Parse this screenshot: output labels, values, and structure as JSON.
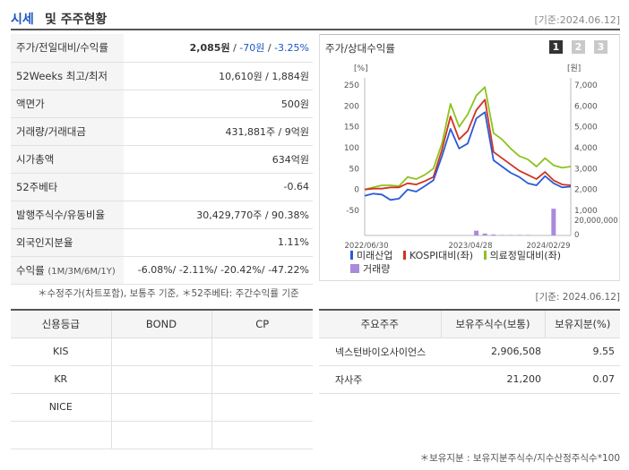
{
  "header": {
    "title_main": "시세",
    "title_rest": "및 주주현황",
    "date": "[기준:2024.06.12]"
  },
  "quote": {
    "price_label": "주가/전일대비/수익률",
    "price": "2,085원",
    "price_sep1": " / ",
    "change": "-70원",
    "price_sep2": " / ",
    "change_rate": "-3.25%",
    "w52_label": "52Weeks 최고/최저",
    "w52_value": "10,610원 / 1,884원",
    "par_label": "액면가",
    "par_value": "500원",
    "volume_label": "거래량/거래대금",
    "volume_value": "431,881주 / 9억원",
    "mcap_label": "시가총액",
    "mcap_value": "634억원",
    "beta_label": "52주베타",
    "beta_value": "-0.64",
    "shares_label": "발행주식수/유동비율",
    "shares_value": "30,429,770주 / 90.38%",
    "foreign_label": "외국인지분율",
    "foreign_value": "1.11%",
    "return_label": "수익률",
    "return_sub": "(1M/3M/6M/1Y)",
    "return_value": "-6.08%/ -2.11%/ -20.42%/ -47.22%"
  },
  "chart_panel": {
    "title": "주가/상대수익률",
    "tabs": [
      "1",
      "2",
      "3"
    ],
    "active_tab_color": "#333333",
    "inactive_tab_color": "#c9c9c9"
  },
  "chart_data": {
    "type": "line",
    "left_unit": "[%]",
    "right_unit": "[원]",
    "left_ticks": [
      "250",
      "200",
      "150",
      "100",
      "50",
      "0",
      "-50"
    ],
    "right_ticks": [
      "7,000",
      "6,000",
      "5,000",
      "4,000",
      "3,000",
      "2,000",
      "1,000"
    ],
    "volume_ticks": [
      "20,000,000",
      "0"
    ],
    "x_ticks": [
      "2022/06/30",
      "2023/04/28",
      "2024/02/29"
    ],
    "ylim": [
      -50,
      250
    ],
    "x": [
      0,
      1,
      2,
      3,
      4,
      5,
      6,
      7,
      8,
      9,
      10,
      11,
      12,
      13,
      14,
      15,
      16,
      17,
      18,
      19,
      20,
      21,
      22,
      23,
      24
    ],
    "series": [
      {
        "name": "미래산업",
        "color": "#2a5bd7",
        "values": [
          -15,
          -10,
          -12,
          -25,
          -22,
          0,
          -5,
          8,
          22,
          80,
          145,
          98,
          110,
          170,
          185,
          70,
          55,
          40,
          30,
          15,
          10,
          32,
          15,
          5,
          7
        ]
      },
      {
        "name": "KOSPI대비(좌)",
        "color": "#d0341f",
        "values": [
          0,
          2,
          2,
          5,
          5,
          15,
          12,
          20,
          30,
          95,
          175,
          120,
          140,
          190,
          215,
          90,
          75,
          60,
          45,
          35,
          25,
          42,
          22,
          12,
          10
        ]
      },
      {
        "name": "의료정밀대비(좌)",
        "color": "#8dc21f",
        "values": [
          0,
          5,
          10,
          10,
          8,
          30,
          25,
          35,
          50,
          110,
          205,
          150,
          180,
          225,
          245,
          135,
          120,
          98,
          80,
          72,
          55,
          75,
          58,
          52,
          55
        ]
      }
    ],
    "volume": {
      "name": "거래량",
      "color": "#a98bdc",
      "values": [
        0,
        0,
        0,
        0,
        0,
        0,
        0,
        0,
        0,
        0,
        0,
        0,
        0,
        5,
        2,
        1,
        0.5,
        0.5,
        0.5,
        0.5,
        0,
        0,
        28,
        0,
        0
      ]
    }
  },
  "legend": {
    "s1": "미래산업",
    "s2": "KOSPI대비(좌)",
    "s3": "의료정밀대비(좌)",
    "vol": "거래량"
  },
  "notes": {
    "left": "＊수정주가(차트포함), 보통주 기준, ＊52주베타: 주간수익률 기준",
    "right": "[기준: 2024.06.12]",
    "bottom": "＊보유지분 : 보유지분주식수/지수산정주식수*100"
  },
  "credit": {
    "headers": [
      "신용등급",
      "BOND",
      "CP"
    ],
    "rows": [
      "KIS",
      "KR",
      "NICE",
      ""
    ]
  },
  "holders": {
    "headers": [
      "주요주주",
      "보유주식수(보통)",
      "보유지분(%)"
    ],
    "rows": [
      {
        "name": "넥스턴바이오사이언스",
        "shares": "2,906,508",
        "pct": "9.55"
      },
      {
        "name": "자사주",
        "shares": "21,200",
        "pct": "0.07"
      }
    ]
  }
}
